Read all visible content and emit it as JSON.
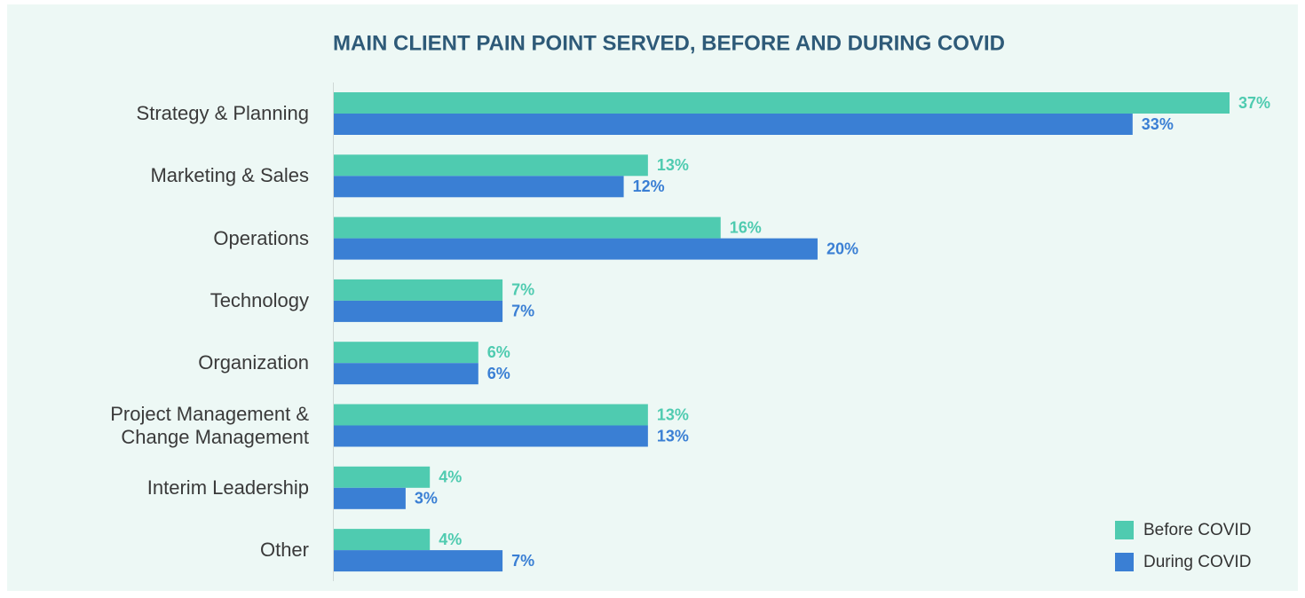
{
  "chart_data": {
    "type": "hbar",
    "title": "MAIN CLIENT PAIN POINT SERVED, BEFORE AND DURING COVID",
    "categories": [
      "Strategy & Planning",
      "Marketing & Sales",
      "Operations",
      "Technology",
      "Organization",
      "Project Management &\nChange Management",
      "Interim Leadership",
      "Other"
    ],
    "series": [
      {
        "name": "Before COVID",
        "color": "#4fcbb0",
        "values": [
          37,
          13,
          16,
          7,
          6,
          13,
          4,
          4
        ],
        "value_labels": [
          "37%",
          "13%",
          "16%",
          "7%",
          "6%",
          "13%",
          "4%",
          "4%"
        ]
      },
      {
        "name": "During COVID",
        "color": "#3a7fd4",
        "values": [
          33,
          12,
          20,
          7,
          6,
          13,
          3,
          7
        ],
        "value_labels": [
          "33%",
          "12%",
          "20%",
          "7%",
          "6%",
          "13%",
          "3%",
          "7%"
        ]
      }
    ],
    "legend": "bottom-right"
  }
}
